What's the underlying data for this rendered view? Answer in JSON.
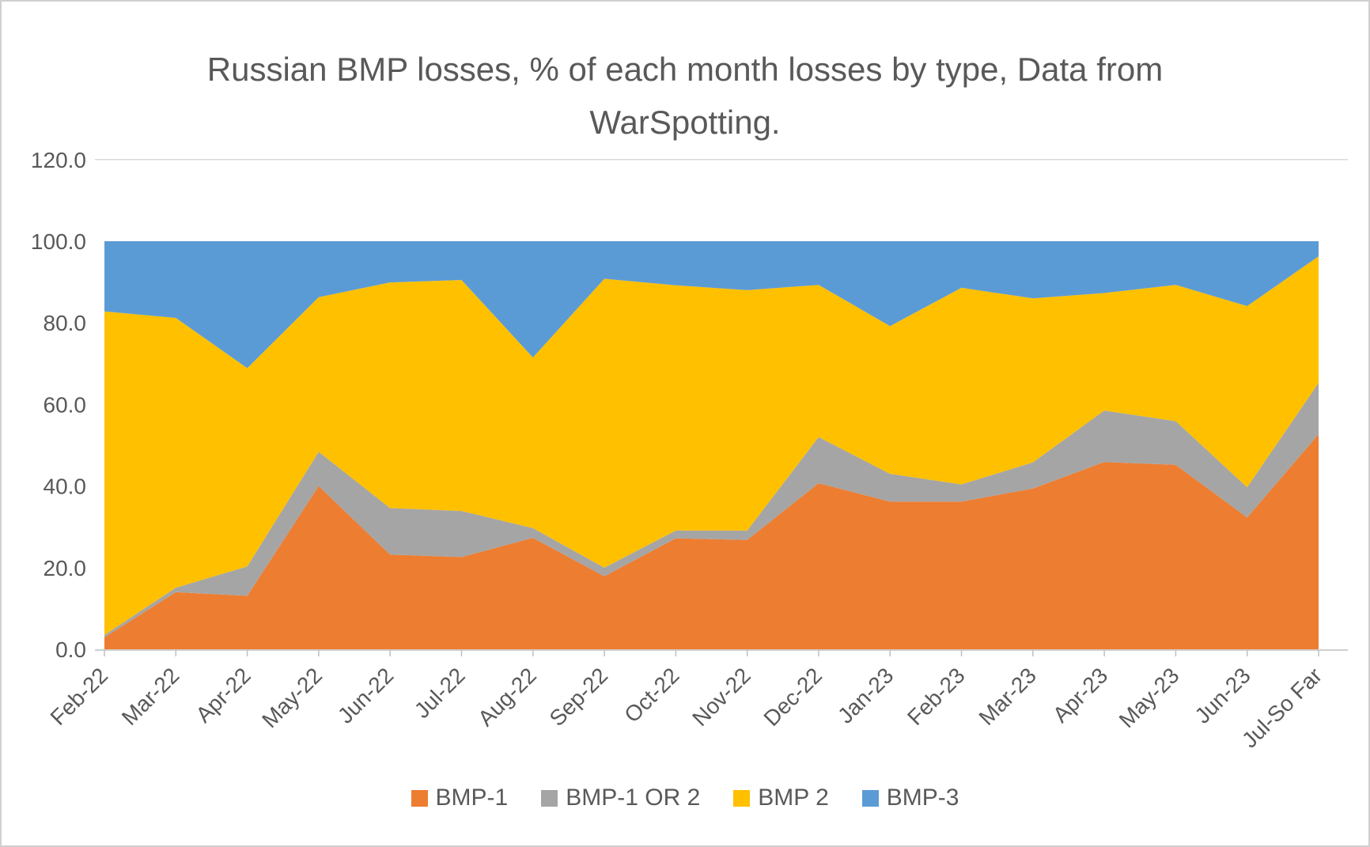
{
  "chart_data": {
    "type": "area",
    "stacked": true,
    "percent_stacked": true,
    "title": "Russian BMP losses, % of each month losses by type, Data from WarSpotting.",
    "categories": [
      "Feb-22",
      "Mar-22",
      "Apr-22",
      "May-22",
      "Jun-22",
      "Jul-22",
      "Aug-22",
      "Sep-22",
      "Oct-22",
      "Nov-22",
      "Dec-22",
      "Jan-23",
      "Feb-23",
      "Mar-23",
      "Apr-23",
      "May-23",
      "Jun-23",
      "Jul-So Far"
    ],
    "series": [
      {
        "name": "BMP-1",
        "color": "#ED7D31",
        "values": [
          2.9,
          14.0,
          13.1,
          40.0,
          23.2,
          22.6,
          27.3,
          17.9,
          27.2,
          26.8,
          40.7,
          36.2,
          36.2,
          39.4,
          45.9,
          45.2,
          32.3,
          52.7
        ]
      },
      {
        "name": "BMP-1 OR 2",
        "color": "#A5A5A5",
        "values": [
          0.6,
          1.1,
          7.2,
          8.4,
          11.4,
          11.3,
          2.4,
          2.1,
          1.9,
          2.3,
          11.3,
          6.8,
          4.2,
          6.4,
          12.6,
          10.7,
          7.4,
          12.6
        ]
      },
      {
        "name": "BMP 2",
        "color": "#FFC000",
        "values": [
          79.3,
          66.1,
          48.6,
          37.9,
          55.3,
          56.6,
          41.8,
          70.8,
          60.1,
          58.9,
          37.3,
          36.2,
          48.2,
          40.2,
          28.8,
          33.4,
          44.4,
          31.0
        ]
      },
      {
        "name": "BMP-3",
        "color": "#5B9BD5",
        "values": [
          17.2,
          18.8,
          31.1,
          13.7,
          10.1,
          9.5,
          28.5,
          9.2,
          10.8,
          12.0,
          10.7,
          20.8,
          11.4,
          14.0,
          12.7,
          10.7,
          15.9,
          3.7
        ]
      }
    ],
    "y_axis": {
      "min": 0,
      "max": 120,
      "step": 20,
      "tick_labels": [
        "0.0",
        "20.0",
        "40.0",
        "60.0",
        "80.0",
        "100.0",
        "120.0"
      ]
    },
    "x_axis": {
      "label_rotation_deg": -45
    },
    "legend_position": "bottom",
    "gridlines": "top-only",
    "colors": {
      "text": "#595959",
      "axis_line": "#bfbfbf",
      "gridline": "#d9d9d9"
    }
  }
}
